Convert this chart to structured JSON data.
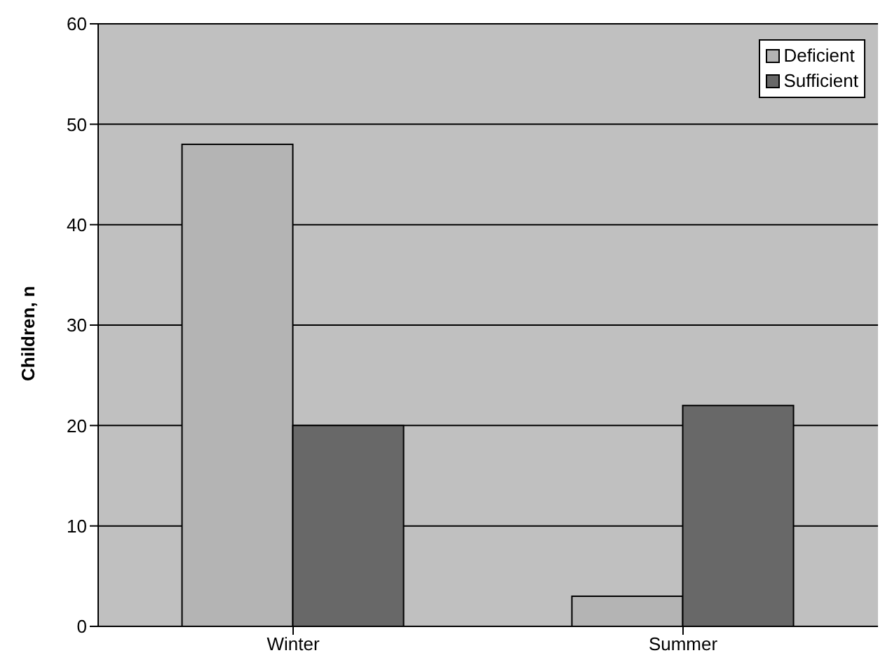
{
  "chart_data": {
    "type": "bar",
    "ylabel": "Children, n",
    "categories": [
      "Winter",
      "Summer"
    ],
    "series": [
      {
        "name": "Deficient",
        "color": "#b4b4b4",
        "values": [
          48,
          3
        ]
      },
      {
        "name": "Sufficient",
        "color": "#686868",
        "values": [
          20,
          22
        ]
      }
    ],
    "ylim": [
      0,
      60
    ],
    "yticks": [
      0,
      10,
      20,
      30,
      40,
      50,
      60
    ],
    "grid": "y",
    "legend": "top right"
  }
}
